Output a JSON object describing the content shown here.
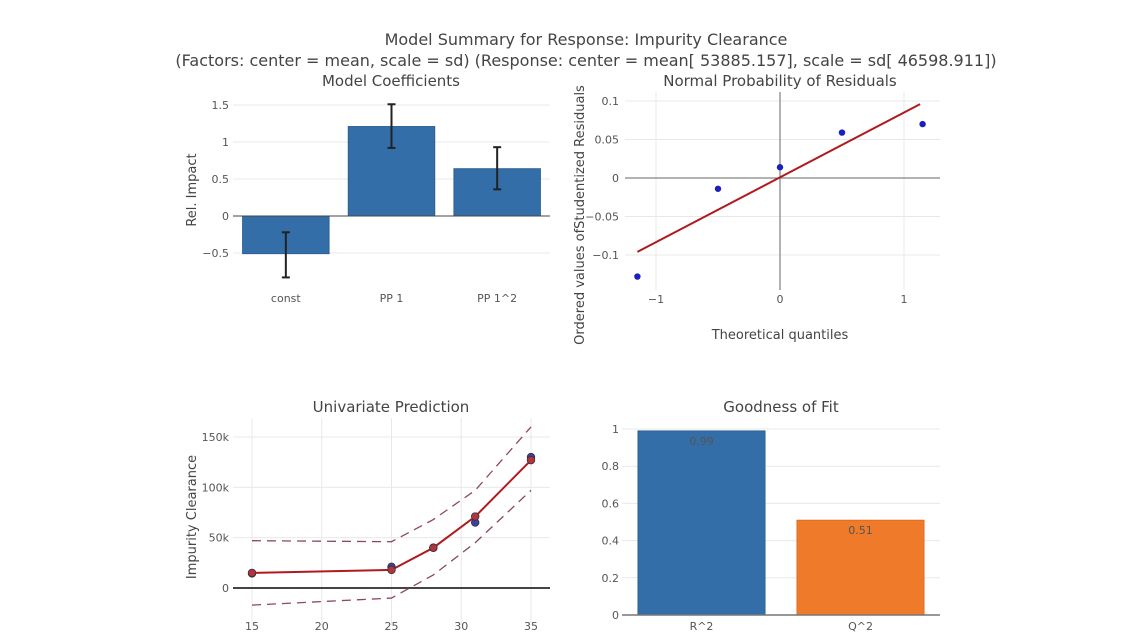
{
  "figure": {
    "title_line1": "Model Summary for Response: Impurity Clearance",
    "title_line2": "(Factors: center = mean, scale = sd)  (Response: center = mean[ 53885.157], scale = sd[ 46598.911])"
  },
  "colors": {
    "bar_blue": "#336ea8",
    "bar_orange": "#ef7a2a",
    "line_red": "#b0191d",
    "point_blue": "#1c1fbf",
    "point_red": "#b3333e",
    "band_dash": "#8b4a55",
    "grid": "#e8e8e8",
    "zeroline": "#555555"
  },
  "chart_data": [
    {
      "type": "bar",
      "title": "Model Coefficients",
      "xlabel": "",
      "ylabel": "Rel. Impact",
      "categories": [
        "const",
        "PP 1",
        "PP 1^2"
      ],
      "values": [
        -0.51,
        1.21,
        0.64
      ],
      "error_low": [
        -0.83,
        0.92,
        0.36
      ],
      "error_high": [
        -0.22,
        1.51,
        0.93
      ],
      "ylim": [
        -0.85,
        1.6
      ],
      "yticks": [
        -0.5,
        0,
        0.5,
        1,
        1.5
      ],
      "ytick_labels": [
        "−0.5",
        "0",
        "0.5",
        "1",
        "1.5"
      ],
      "grid": true
    },
    {
      "type": "scatter",
      "title": "Normal Probability of Residuals",
      "xlabel": "Theoretical quantiles",
      "ylabel": "Ordered values ofStudentized Residuals",
      "points": [
        {
          "x": -1.15,
          "y": -0.128
        },
        {
          "x": -0.5,
          "y": -0.014
        },
        {
          "x": 0.0,
          "y": 0.014
        },
        {
          "x": 0.5,
          "y": 0.059
        },
        {
          "x": 1.15,
          "y": 0.07
        }
      ],
      "fit_line": [
        {
          "x": -1.15,
          "y": -0.096
        },
        {
          "x": 1.13,
          "y": 0.096
        }
      ],
      "xlim": [
        -1.28,
        1.28
      ],
      "ylim": [
        -0.145,
        0.11
      ],
      "xticks": [
        -1,
        0,
        1
      ],
      "xtick_labels": [
        "−1",
        "0",
        "1"
      ],
      "yticks": [
        -0.1,
        -0.05,
        0,
        0.05,
        0.1
      ],
      "ytick_labels": [
        "−0.1",
        "−0.05",
        "0",
        "0.05",
        "0.1"
      ],
      "grid": true
    },
    {
      "type": "line",
      "title": "Univariate Prediction",
      "xlabel": "",
      "ylabel": "Impurity Clearance",
      "prediction": [
        {
          "x": 15,
          "y": 15000
        },
        {
          "x": 25,
          "y": 18000
        },
        {
          "x": 28,
          "y": 40000
        },
        {
          "x": 31,
          "y": 71000
        },
        {
          "x": 35,
          "y": 127000
        }
      ],
      "upper_band": [
        {
          "x": 15,
          "y": 47000
        },
        {
          "x": 25,
          "y": 46000
        },
        {
          "x": 28,
          "y": 68000
        },
        {
          "x": 31,
          "y": 97000
        },
        {
          "x": 35,
          "y": 160000
        }
      ],
      "lower_band": [
        {
          "x": 15,
          "y": -17000
        },
        {
          "x": 25,
          "y": -10000
        },
        {
          "x": 28,
          "y": 13000
        },
        {
          "x": 31,
          "y": 45000
        },
        {
          "x": 35,
          "y": 97000
        }
      ],
      "observed": [
        {
          "x": 15,
          "y": 14500
        },
        {
          "x": 25,
          "y": 21000
        },
        {
          "x": 28,
          "y": 40000
        },
        {
          "x": 31,
          "y": 65000
        },
        {
          "x": 35,
          "y": 130000
        }
      ],
      "xlim": [
        14,
        36
      ],
      "ylim": [
        -22000,
        168000
      ],
      "xticks": [
        15,
        20,
        25,
        30,
        35
      ],
      "xtick_labels": [
        "15",
        "20",
        "25",
        "30",
        "35"
      ],
      "yticks": [
        0,
        50000,
        100000,
        150000
      ],
      "ytick_labels": [
        "0",
        "50k",
        "100k",
        "150k"
      ],
      "grid": true
    },
    {
      "type": "bar",
      "title": "Goodness of Fit",
      "xlabel": "",
      "ylabel": "",
      "categories": [
        "R^2",
        "Q^2"
      ],
      "values": [
        0.99,
        0.51
      ],
      "data_labels": [
        "0.99",
        "0.51"
      ],
      "ylim": [
        0,
        1.0
      ],
      "yticks": [
        0,
        0.2,
        0.4,
        0.6,
        0.8,
        1
      ],
      "ytick_labels": [
        "0",
        "0.2",
        "0.4",
        "0.6",
        "0.8",
        "1"
      ],
      "grid": true
    }
  ]
}
